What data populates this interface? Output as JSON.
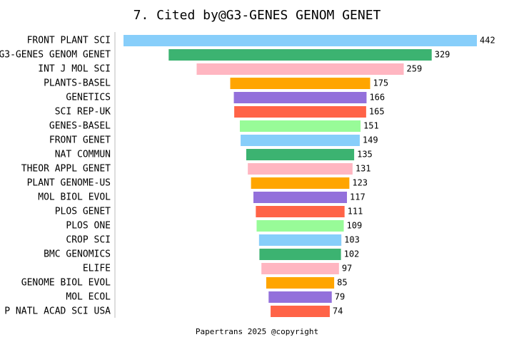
{
  "chart_data": {
    "type": "funnel",
    "title": "7. Cited by@G3-GENES GENOM GENET",
    "footer": "Papertrans 2025 @copyright",
    "categories": [
      "FRONT PLANT SCI",
      "G3-GENES GENOM GENET",
      "INT J MOL SCI",
      "PLANTS-BASEL",
      "GENETICS",
      "SCI REP-UK",
      "GENES-BASEL",
      "FRONT GENET",
      "NAT COMMUN",
      "THEOR APPL GENET",
      "PLANT GENOME-US",
      "MOL BIOL EVOL",
      "PLOS GENET",
      "PLOS ONE",
      "CROP SCI",
      "BMC GENOMICS",
      "ELIFE",
      "GENOME BIOL EVOL",
      "MOL ECOL",
      "P NATL ACAD SCI USA"
    ],
    "values": [
      442,
      329,
      259,
      175,
      166,
      165,
      151,
      149,
      135,
      131,
      123,
      117,
      111,
      109,
      103,
      102,
      97,
      85,
      79,
      74
    ],
    "colors": [
      "#87cefa",
      "#3cb371",
      "#ffb6c1",
      "#ffa500",
      "#9370db",
      "#ff6347",
      "#98fb98"
    ]
  }
}
